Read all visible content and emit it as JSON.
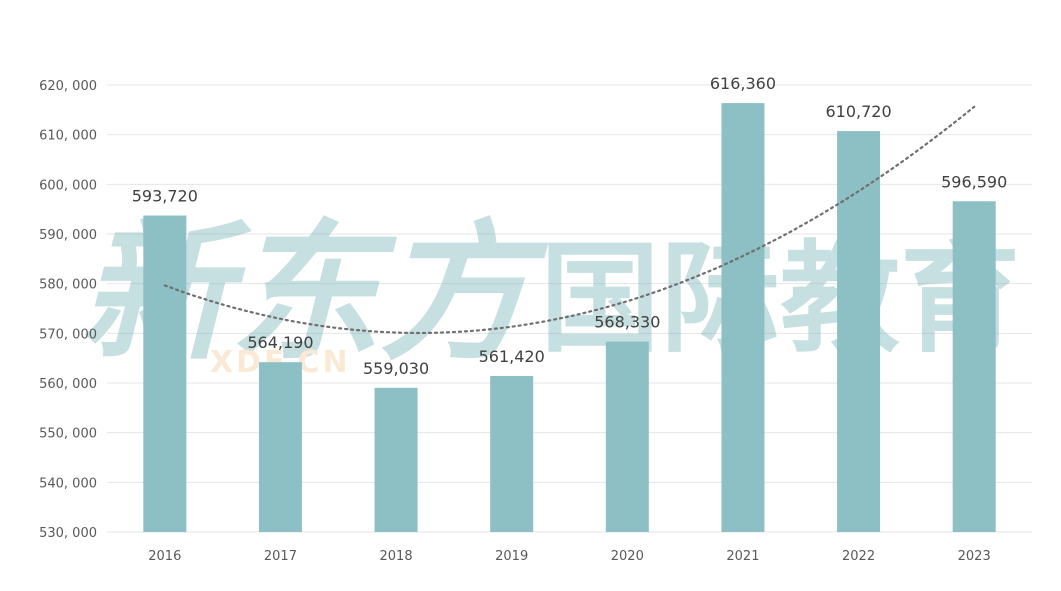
{
  "colors": {
    "bar": "#8dc0c4",
    "trendline": "#6f6f6f",
    "watermark_main": "#5fa6ab",
    "watermark_sub": "#f3c68a"
  },
  "watermark": {
    "text_left": "新东方",
    "text_right": "国际教育",
    "text_sub": "XDF.CN"
  },
  "chart_data": {
    "type": "bar",
    "categories": [
      "2016",
      "2017",
      "2018",
      "2019",
      "2020",
      "2021",
      "2022",
      "2023"
    ],
    "values": [
      593720,
      564190,
      559030,
      561420,
      568330,
      616360,
      610720,
      596590
    ],
    "data_labels": [
      "593,720",
      "564,190",
      "559,030",
      "561,420",
      "568,330",
      "616,360",
      "610,720",
      "596,590"
    ],
    "y_ticks": [
      530000,
      540000,
      550000,
      560000,
      570000,
      580000,
      590000,
      600000,
      610000,
      620000
    ],
    "y_tick_labels": [
      "530, 000",
      "540, 000",
      "550, 000",
      "560, 000",
      "570, 000",
      "580, 000",
      "590, 000",
      "600, 000",
      "610, 000",
      "620, 000"
    ],
    "ylim": [
      530000,
      620000
    ],
    "trendline": {
      "type": "polynomial",
      "order": 2,
      "style": "dotted"
    },
    "grid": true,
    "legend": "none",
    "title": "",
    "xlabel": "",
    "ylabel": ""
  }
}
